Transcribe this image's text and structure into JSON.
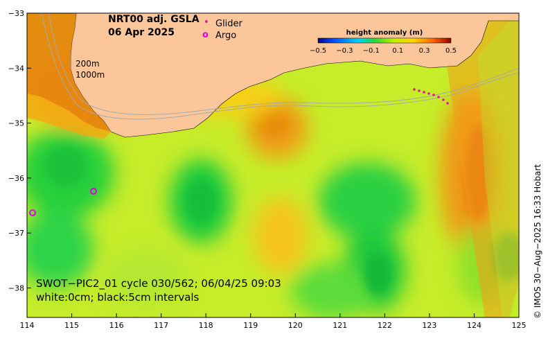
{
  "title": {
    "line1": "NRT00 adj. GSLA",
    "line2": "06 Apr 2025"
  },
  "legend": {
    "glider_marker": "•",
    "glider_label": "Glider",
    "argo_marker": "o",
    "argo_label": "Argo",
    "glider_color": "#e0169a",
    "argo_color": "#e000e0"
  },
  "isobaths": {
    "label1": "200m",
    "label2": "1000m"
  },
  "colorbar": {
    "title": "height anomaly (m)",
    "min": -0.5,
    "max": 0.5,
    "ticks": [
      "−0.5",
      "−0.3",
      "−0.1",
      "0.1",
      "0.3",
      "0.5"
    ]
  },
  "axes": {
    "x_ticks": [
      "114",
      "115",
      "116",
      "117",
      "118",
      "119",
      "120",
      "121",
      "122",
      "123",
      "124",
      "125"
    ],
    "y_ticks": [
      "−33",
      "−34",
      "−35",
      "−36",
      "−37",
      "−38"
    ],
    "lon_range": [
      114,
      125
    ],
    "lat_range": [
      -38.5,
      -33
    ]
  },
  "swot": {
    "line1": "SWOT−PIC2_01 cycle 030/562; 06/04/25 09:03",
    "line2": "white:0cm; black:5cm intervals"
  },
  "credit": "© IMOS 30−Aug−2025 16:33 Hobart",
  "colors": {
    "land": "#fbc79a",
    "coast": "#000000",
    "isobath": "#a8a8a8"
  },
  "chart_data": {
    "type": "heatmap",
    "variable": "height anomaly (m)",
    "value_range": [
      -0.5,
      0.5
    ],
    "argo_floats": [
      {
        "lon": 115.5,
        "lat": -36.2
      },
      {
        "lon": 114.1,
        "lat": -36.6
      }
    ],
    "glider_track": [
      {
        "lon": 122.7,
        "lat": -34.38
      },
      {
        "lon": 122.9,
        "lat": -34.42
      },
      {
        "lon": 123.1,
        "lat": -34.47
      },
      {
        "lon": 123.3,
        "lat": -34.55
      }
    ]
  }
}
